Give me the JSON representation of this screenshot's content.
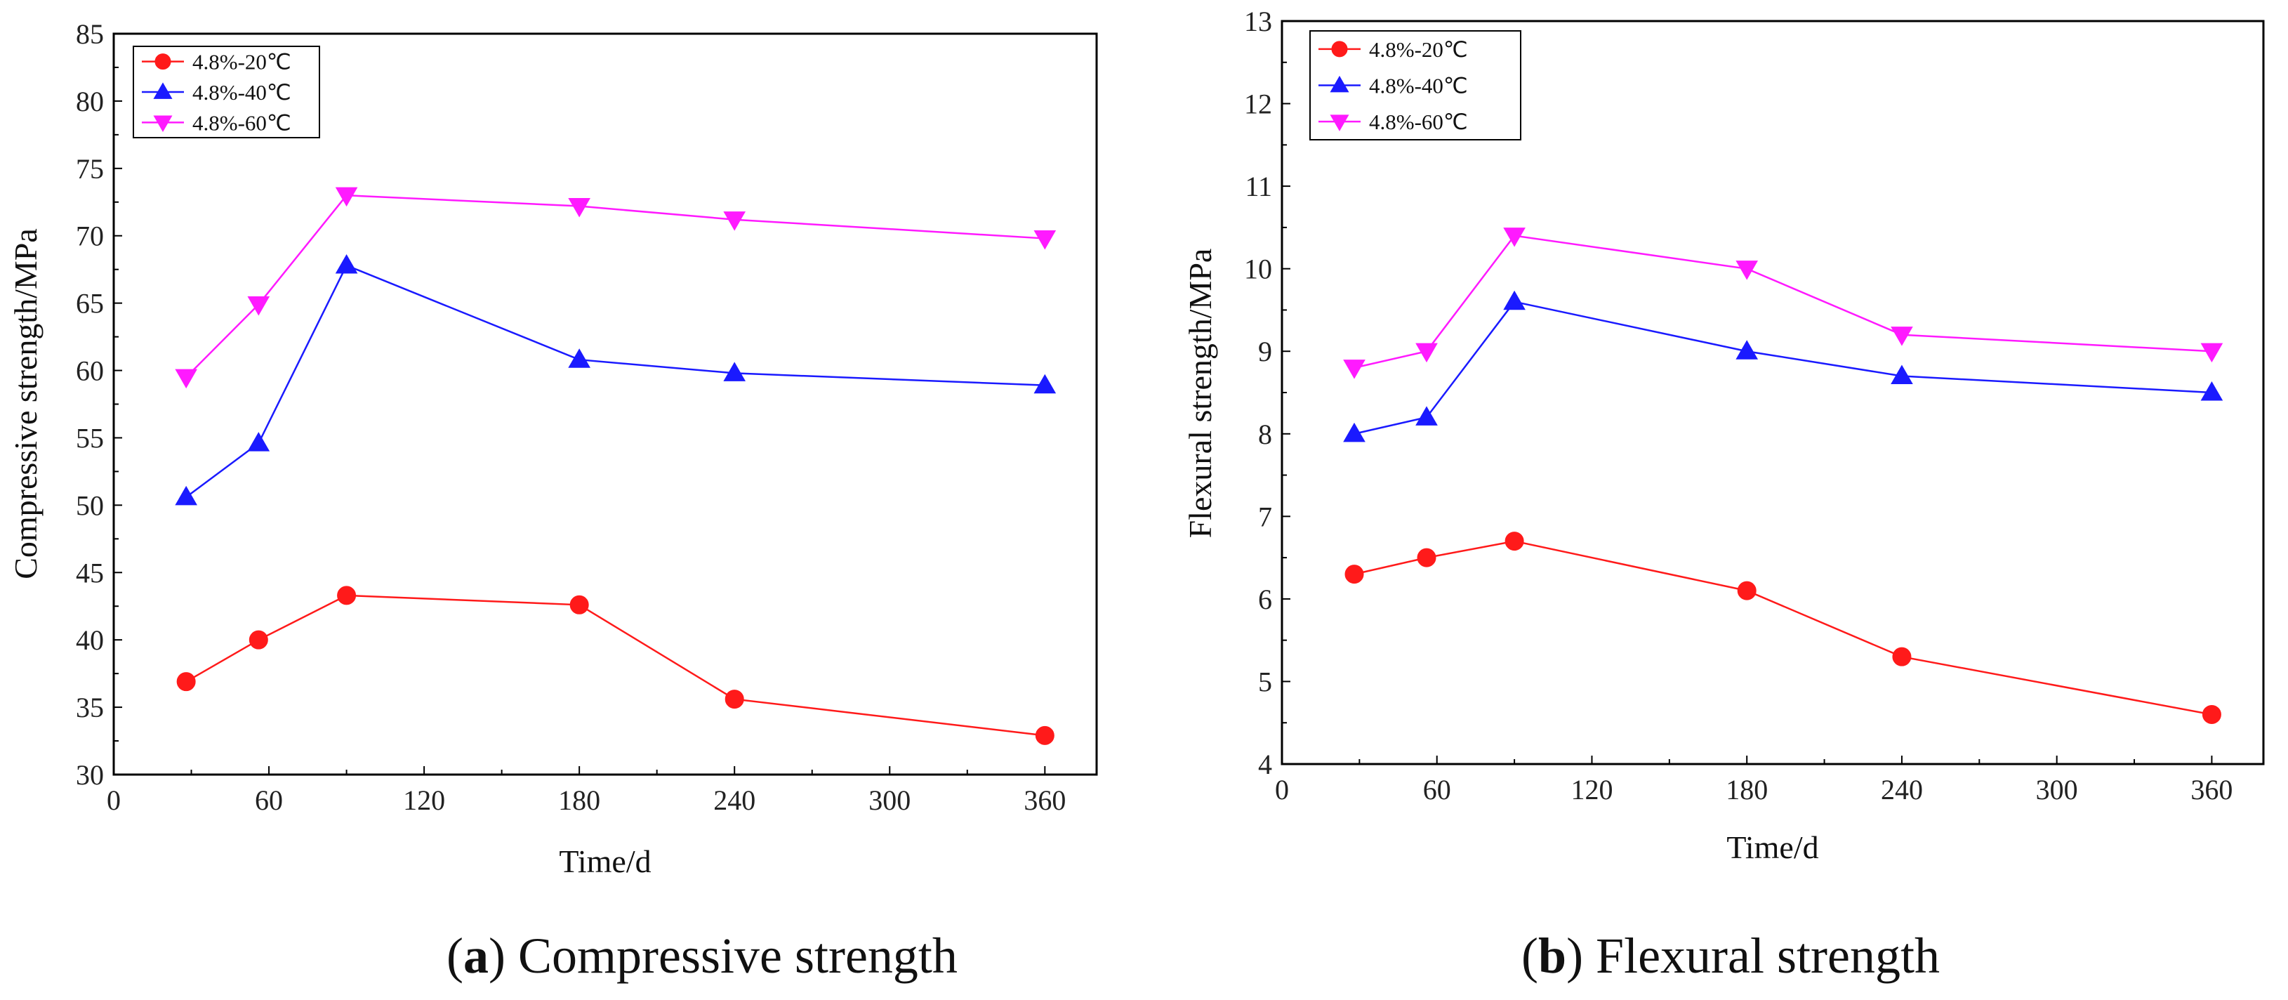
{
  "colors": {
    "red": "#ff1a1a",
    "blue": "#1a1aff",
    "magenta": "#ff1aff"
  },
  "chart_data": [
    {
      "type": "line",
      "xlabel": "Time/d",
      "ylabel": "Compressive strength/MPa",
      "xlim": [
        0,
        380
      ],
      "ylim": [
        30,
        85
      ],
      "xticks": [
        0,
        60,
        120,
        180,
        240,
        300,
        360
      ],
      "yticks": [
        30,
        35,
        40,
        45,
        50,
        55,
        60,
        65,
        70,
        75,
        80,
        85
      ],
      "x": [
        28,
        56,
        90,
        180,
        240,
        360
      ],
      "series": [
        {
          "name": "4.8%-20℃",
          "marker": "circle",
          "color": "#ff1a1a",
          "values": [
            36.9,
            40.0,
            43.3,
            42.6,
            35.6,
            32.9
          ]
        },
        {
          "name": "4.8%-40℃",
          "marker": "triangle-up",
          "color": "#1a1aff",
          "values": [
            50.6,
            54.6,
            67.8,
            60.8,
            59.8,
            58.9
          ]
        },
        {
          "name": "4.8%-60℃",
          "marker": "triangle-down",
          "color": "#ff1aff",
          "values": [
            59.5,
            64.9,
            73.0,
            72.2,
            71.2,
            69.8
          ]
        }
      ],
      "legend": "top-left",
      "caption_letter": "a",
      "caption_text": ") Compressive strength"
    },
    {
      "type": "line",
      "xlabel": "Time/d",
      "ylabel": "Flexural strength/MPa",
      "xlim": [
        0,
        380
      ],
      "ylim": [
        4,
        13
      ],
      "xticks": [
        0,
        60,
        120,
        180,
        240,
        300,
        360
      ],
      "yticks": [
        4,
        5,
        6,
        7,
        8,
        9,
        10,
        11,
        12,
        13
      ],
      "x": [
        28,
        56,
        90,
        180,
        240,
        360
      ],
      "series": [
        {
          "name": "4.8%-20℃",
          "marker": "circle",
          "color": "#ff1a1a",
          "values": [
            6.3,
            6.5,
            6.7,
            6.1,
            5.3,
            4.6
          ]
        },
        {
          "name": "4.8%-40℃",
          "marker": "triangle-up",
          "color": "#1a1aff",
          "values": [
            8.0,
            8.2,
            9.6,
            9.0,
            8.7,
            8.5
          ]
        },
        {
          "name": "4.8%-60℃",
          "marker": "triangle-down",
          "color": "#ff1aff",
          "values": [
            8.8,
            9.0,
            10.4,
            10.0,
            9.2,
            9.0
          ]
        }
      ],
      "legend": "top-left",
      "caption_letter": "b",
      "caption_text": ") Flexural strength"
    }
  ]
}
